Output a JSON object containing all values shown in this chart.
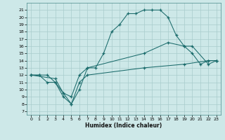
{
  "xlabel": "Humidex (Indice chaleur)",
  "xlim": [
    -0.5,
    23.5
  ],
  "ylim": [
    6.5,
    22.0
  ],
  "yticks": [
    7,
    8,
    9,
    10,
    11,
    12,
    13,
    14,
    15,
    16,
    17,
    18,
    19,
    20,
    21
  ],
  "xticks": [
    0,
    1,
    2,
    3,
    4,
    5,
    6,
    7,
    8,
    9,
    10,
    11,
    12,
    13,
    14,
    15,
    16,
    17,
    18,
    19,
    20,
    21,
    22,
    23
  ],
  "bg_color": "#cde8e8",
  "line_color": "#1a6b6b",
  "grid_color": "#a8cccc",
  "line1_x": [
    0,
    1,
    2,
    3,
    4,
    5,
    6,
    7,
    8,
    9,
    10,
    11,
    12,
    13,
    14,
    15,
    16,
    17,
    18,
    19,
    20,
    21,
    22,
    23
  ],
  "line1_y": [
    12,
    12,
    12,
    11,
    9,
    8,
    10,
    13,
    13,
    15,
    18,
    19,
    20.5,
    20.5,
    21,
    21,
    21,
    20,
    17.5,
    16,
    15,
    13.5,
    14,
    14
  ],
  "line2_x": [
    0,
    1,
    2,
    3,
    4,
    5,
    6,
    7,
    14,
    17,
    19,
    20,
    22,
    23
  ],
  "line2_y": [
    12,
    12,
    11,
    11,
    9.5,
    9,
    12,
    13,
    15,
    16.5,
    16,
    16,
    13.5,
    14
  ],
  "line3_x": [
    0,
    3,
    4,
    5,
    6,
    7,
    14,
    19,
    22,
    23
  ],
  "line3_y": [
    12,
    11.5,
    9.5,
    8,
    11,
    12,
    13,
    13.5,
    14,
    14
  ]
}
